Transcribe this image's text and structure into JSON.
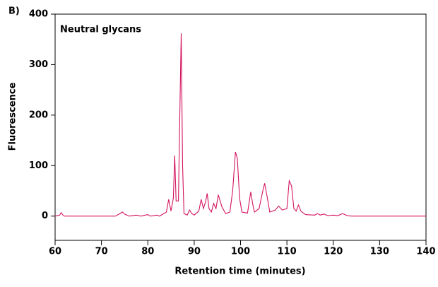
{
  "chart_data": {
    "type": "line",
    "panel_label": "B)",
    "annotation": "Neutral glycans",
    "xlabel": "Retention time (minutes)",
    "ylabel": "Fluorescence",
    "x": [
      60,
      61,
      61.3,
      61.7,
      62,
      73,
      74,
      74.5,
      75,
      76,
      77.5,
      78.5,
      80,
      80.5,
      82,
      82.5,
      84,
      84.5,
      85,
      85.5,
      85.8,
      86.1,
      86.6,
      86.9,
      87.2,
      87.5,
      87.8,
      88.5,
      89,
      89.5,
      90,
      91,
      91.5,
      92,
      92.5,
      92.8,
      93.2,
      93.7,
      94.2,
      94.7,
      95.2,
      95.6,
      96,
      96.8,
      97.7,
      98.3,
      98.9,
      99.3,
      99.8,
      100.3,
      101.5,
      102.2,
      102.6,
      103,
      104,
      104.8,
      105.2,
      105.8,
      106.3,
      107.5,
      108.2,
      109,
      110,
      110.5,
      111,
      111.5,
      112,
      112.5,
      113,
      114,
      116,
      116.6,
      117.2,
      118,
      118.8,
      120,
      121,
      122,
      123,
      124,
      140
    ],
    "series": [
      {
        "color": "#d3145f",
        "values": [
          0,
          2,
          7,
          2,
          0,
          0,
          5,
          8,
          4,
          0,
          2,
          0,
          3,
          0,
          2,
          0,
          8,
          33,
          10,
          35,
          120,
          30,
          30,
          200,
          362,
          100,
          5,
          2,
          12,
          5,
          2,
          10,
          33,
          15,
          30,
          45,
          15,
          8,
          25,
          15,
          42,
          30,
          18,
          5,
          8,
          50,
          127,
          115,
          35,
          8,
          6,
          48,
          25,
          8,
          15,
          50,
          65,
          35,
          8,
          12,
          20,
          12,
          15,
          70,
          60,
          15,
          10,
          22,
          10,
          3,
          2,
          5,
          2,
          4,
          1,
          2,
          1,
          5,
          1,
          0,
          0
        ]
      }
    ],
    "xlim": [
      60,
      140
    ],
    "xticks": [
      60,
      70,
      80,
      90,
      100,
      110,
      120,
      130,
      140
    ],
    "ylim": [
      -48,
      400
    ],
    "yticks": [
      0,
      100,
      200,
      300,
      400
    ]
  }
}
